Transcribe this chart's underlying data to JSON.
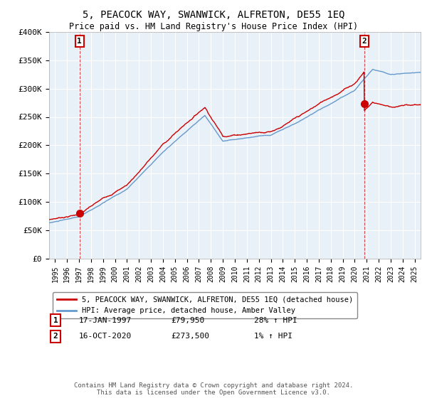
{
  "title": "5, PEACOCK WAY, SWANWICK, ALFRETON, DE55 1EQ",
  "subtitle": "Price paid vs. HM Land Registry's House Price Index (HPI)",
  "ylabel_ticks": [
    "£0",
    "£50K",
    "£100K",
    "£150K",
    "£200K",
    "£250K",
    "£300K",
    "£350K",
    "£400K"
  ],
  "ylim": [
    0,
    400000
  ],
  "xlim_start": 1994.5,
  "xlim_end": 2025.5,
  "sale1_date": 1997.04,
  "sale1_price": 79950,
  "sale1_label": "1",
  "sale2_date": 2020.79,
  "sale2_price": 273500,
  "sale2_label": "2",
  "legend_line1": "5, PEACOCK WAY, SWANWICK, ALFRETON, DE55 1EQ (detached house)",
  "legend_line2": "HPI: Average price, detached house, Amber Valley",
  "row1_num": "1",
  "row1_date": "17-JAN-1997",
  "row1_price": "£79,950",
  "row1_hpi": "28% ↑ HPI",
  "row2_num": "2",
  "row2_date": "16-OCT-2020",
  "row2_price": "£273,500",
  "row2_hpi": "1% ↑ HPI",
  "footer": "Contains HM Land Registry data © Crown copyright and database right 2024.\nThis data is licensed under the Open Government Licence v3.0.",
  "price_line_color": "#cc0000",
  "hpi_line_color": "#6699cc",
  "background_color": "#dde8f0",
  "plot_bg_color": "#e8f0f8",
  "grid_color": "#ffffff",
  "sale_marker_color": "#cc0000",
  "dashed_line_color": "#cc0000",
  "fig_bg_color": "#ffffff"
}
